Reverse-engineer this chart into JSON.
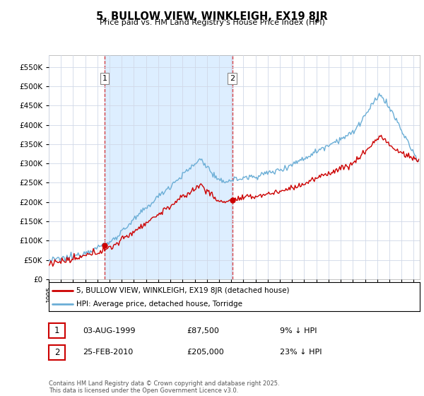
{
  "title": "5, BULLOW VIEW, WINKLEIGH, EX19 8JR",
  "subtitle": "Price paid vs. HM Land Registry's House Price Index (HPI)",
  "ytick_values": [
    0,
    50000,
    100000,
    150000,
    200000,
    250000,
    300000,
    350000,
    400000,
    450000,
    500000,
    550000
  ],
  "ylim": [
    0,
    580000
  ],
  "hpi_color": "#6baed6",
  "price_color": "#cc0000",
  "vline_color": "#cc0000",
  "shade_color": "#ddeeff",
  "marker1_yr": 1999.583,
  "marker2_yr": 2010.083,
  "marker1_label": "1",
  "marker2_label": "2",
  "marker1_date": "03-AUG-1999",
  "marker1_price": "£87,500",
  "marker1_pct": "9% ↓ HPI",
  "marker2_date": "25-FEB-2010",
  "marker2_price": "£205,000",
  "marker2_pct": "23% ↓ HPI",
  "legend_line1": "5, BULLOW VIEW, WINKLEIGH, EX19 8JR (detached house)",
  "legend_line2": "HPI: Average price, detached house, Torridge",
  "footnote": "Contains HM Land Registry data © Crown copyright and database right 2025.\nThis data is licensed under the Open Government Licence v3.0.",
  "background_color": "#ffffff",
  "grid_color": "#d0d8e8",
  "xlim_start": 1995.0,
  "xlim_end": 2025.5
}
